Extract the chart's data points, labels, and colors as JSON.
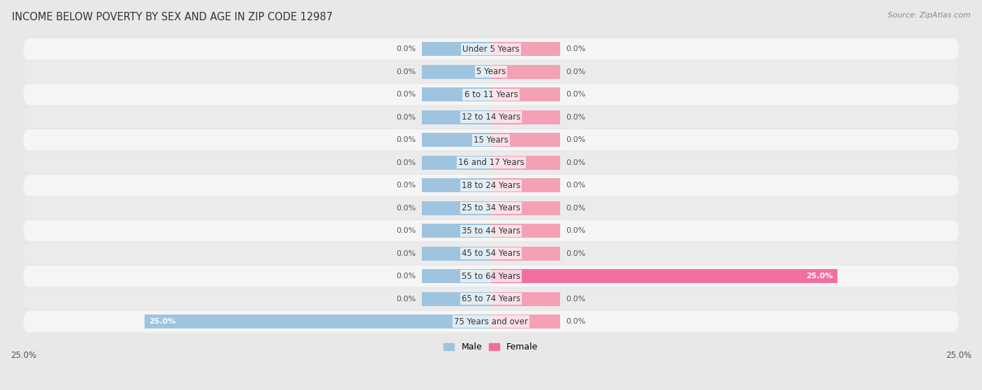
{
  "title": "INCOME BELOW POVERTY BY SEX AND AGE IN ZIP CODE 12987",
  "source": "Source: ZipAtlas.com",
  "categories": [
    "Under 5 Years",
    "5 Years",
    "6 to 11 Years",
    "12 to 14 Years",
    "15 Years",
    "16 and 17 Years",
    "18 to 24 Years",
    "25 to 34 Years",
    "35 to 44 Years",
    "45 to 54 Years",
    "55 to 64 Years",
    "65 to 74 Years",
    "75 Years and over"
  ],
  "male_values": [
    0.0,
    0.0,
    0.0,
    0.0,
    0.0,
    0.0,
    0.0,
    0.0,
    0.0,
    0.0,
    0.0,
    0.0,
    25.0
  ],
  "female_values": [
    0.0,
    0.0,
    0.0,
    0.0,
    0.0,
    0.0,
    0.0,
    0.0,
    0.0,
    0.0,
    25.0,
    0.0,
    0.0
  ],
  "male_color": "#9ec4e0",
  "female_color": "#f4a0b5",
  "female_color_full": "#f06fa0",
  "male_label": "Male",
  "female_label": "Female",
  "xlim": 25.0,
  "bar_height": 0.62,
  "background_color": "#e8e8e8",
  "row_bg_even": "#f5f5f5",
  "row_bg_odd": "#ebebeb",
  "title_fontsize": 10.5,
  "source_fontsize": 8,
  "label_fontsize": 8.5,
  "value_fontsize": 8,
  "legend_fontsize": 9,
  "default_bar_width": 5.0
}
